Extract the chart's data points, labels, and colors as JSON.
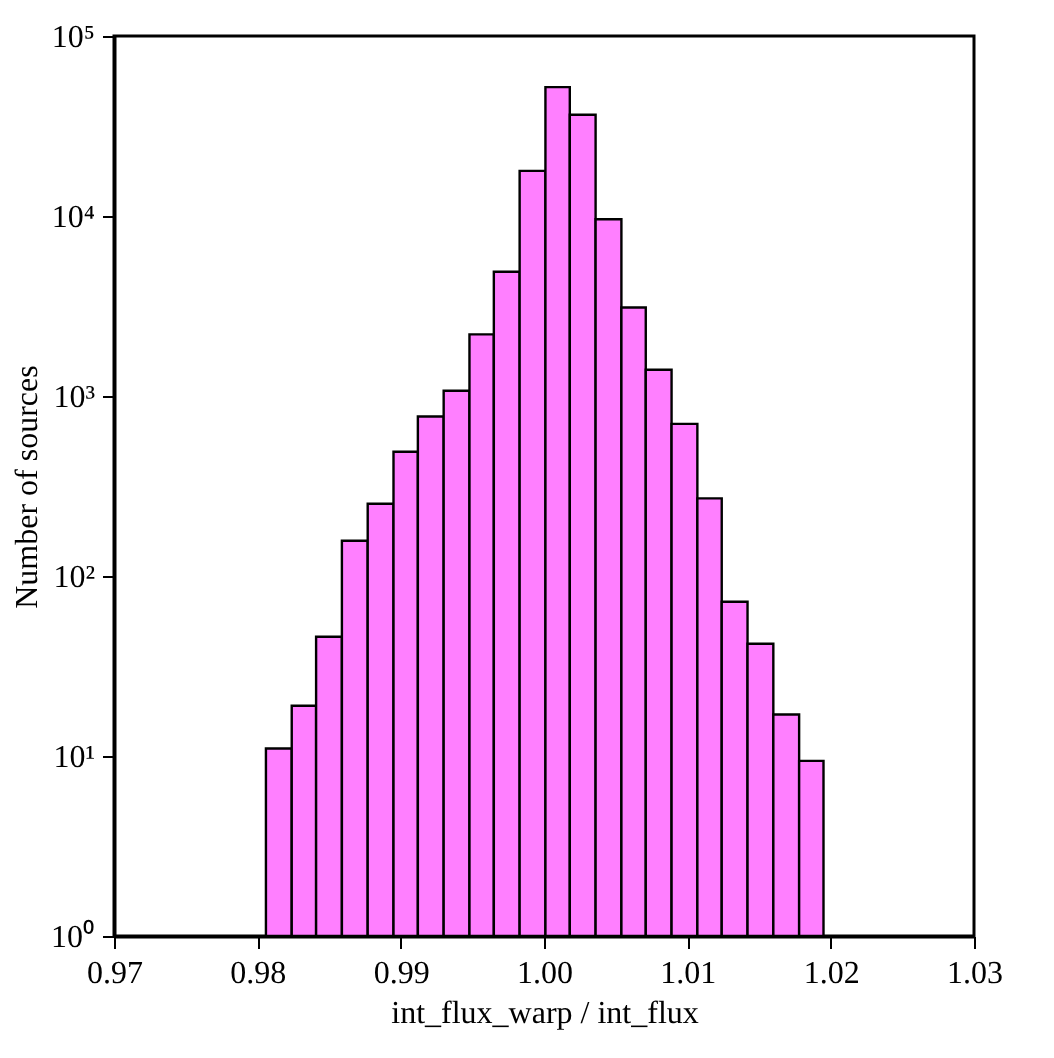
{
  "chart_data": {
    "type": "histogram",
    "xlabel": "int_flux_warp / int_flux",
    "ylabel": "Number of sources",
    "bins": [
      0.9806,
      0.9824,
      0.9841,
      0.9859,
      0.9877,
      0.9895,
      0.9912,
      0.993,
      0.9948,
      0.9965,
      0.9983,
      1.0001,
      1.0018,
      1.0036,
      1.0054,
      1.0071,
      1.0089,
      1.0107,
      1.0124,
      1.0142,
      1.016,
      1.0178,
      1.0195
    ],
    "values": [
      11,
      19,
      46,
      157,
      252,
      490,
      770,
      1070,
      2200,
      4900,
      17800,
      52000,
      36500,
      9600,
      3100,
      1400,
      700,
      270,
      72,
      42,
      17,
      9.4
    ],
    "color": "#ff7fff",
    "log": "y",
    "xlim": [
      0.97,
      1.03
    ],
    "xticks": [
      {
        "value": 0.97,
        "label": "0.97"
      },
      {
        "value": 0.98,
        "label": "0.98"
      },
      {
        "value": 0.99,
        "label": "0.99"
      },
      {
        "value": 1.0,
        "label": "1.00"
      },
      {
        "value": 1.01,
        "label": "1.01"
      },
      {
        "value": 1.02,
        "label": "1.02"
      },
      {
        "value": 1.03,
        "label": "1.03"
      }
    ],
    "ylim": [
      1,
      100000
    ],
    "yticks": [
      {
        "value": 1,
        "label": "10⁰"
      },
      {
        "value": 10,
        "label": "10¹"
      },
      {
        "value": 100,
        "label": "10²"
      },
      {
        "value": 1000,
        "label": "10³"
      },
      {
        "value": 10000,
        "label": "10⁴"
      },
      {
        "value": 100000,
        "label": "10⁵"
      }
    ],
    "grid": false
  }
}
